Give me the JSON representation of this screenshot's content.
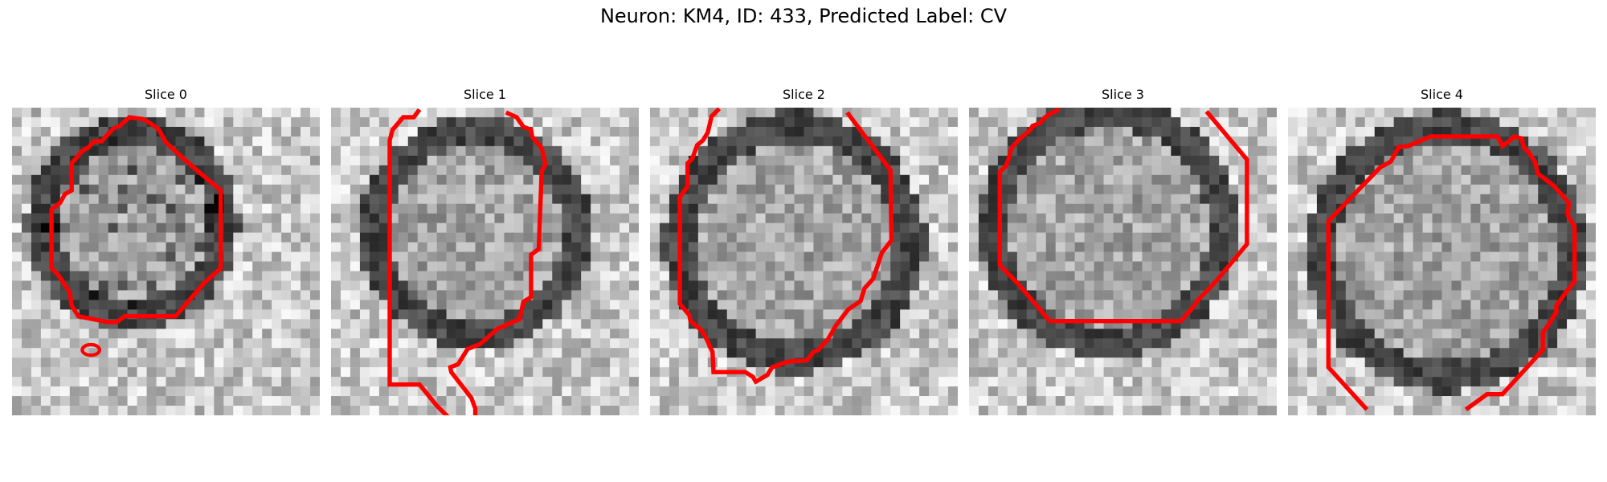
{
  "figure": {
    "title": "Neuron: KM4, ID: 433, Predicted Label: CV"
  },
  "panels": [
    {
      "title": "Slice 0"
    },
    {
      "title": "Slice 1"
    },
    {
      "title": "Slice 2"
    },
    {
      "title": "Slice 3"
    },
    {
      "title": "Slice 4"
    }
  ],
  "colors": {
    "contour": "#ff0000",
    "background": "#ffffff"
  }
}
